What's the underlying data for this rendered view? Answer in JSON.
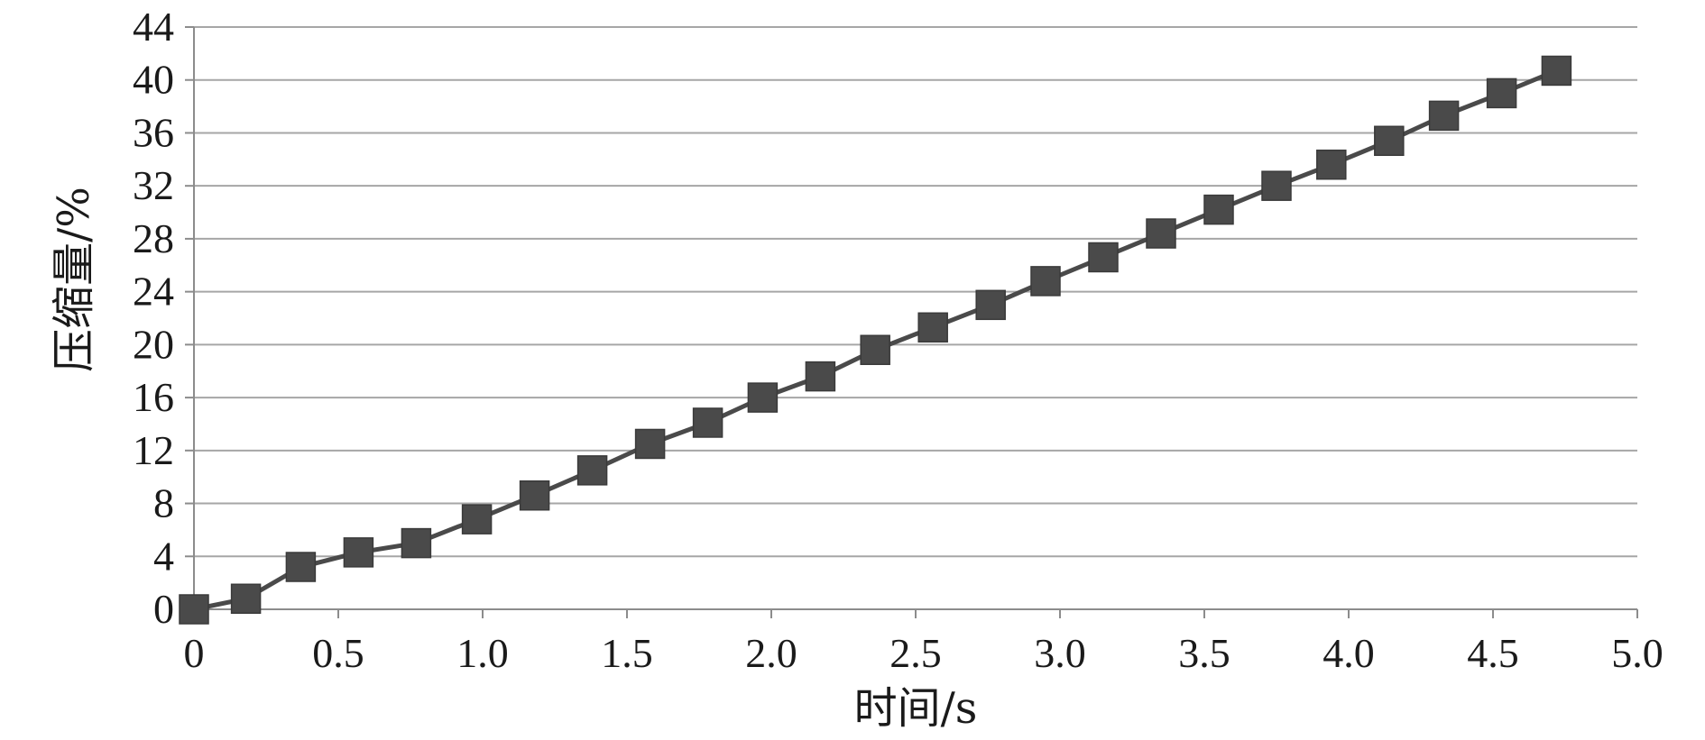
{
  "chart_data": {
    "type": "line",
    "title": "",
    "xlabel": "时间/s",
    "ylabel": "压缩量/%",
    "xlim": [
      0,
      5.0
    ],
    "ylim": [
      0,
      44
    ],
    "x_ticks": [
      "0",
      "0.5",
      "1.0",
      "1.5",
      "2.0",
      "2.5",
      "3.0",
      "3.5",
      "4.0",
      "4.5",
      "5.0"
    ],
    "y_ticks": [
      "0",
      "4",
      "8",
      "12",
      "16",
      "20",
      "24",
      "28",
      "32",
      "36",
      "40",
      "44"
    ],
    "grid": true,
    "legend": "none",
    "series": [
      {
        "marker": "square",
        "color": "#4a4a4a",
        "x": [
          0,
          0.18,
          0.37,
          0.57,
          0.77,
          0.98,
          1.18,
          1.38,
          1.58,
          1.78,
          1.97,
          2.17,
          2.36,
          2.56,
          2.76,
          2.95,
          3.15,
          3.35,
          3.55,
          3.75,
          3.94,
          4.14,
          4.33,
          4.53,
          4.72
        ],
        "y": [
          0,
          0.8,
          3.2,
          4.3,
          5.0,
          6.8,
          8.6,
          10.5,
          12.5,
          14.1,
          16.0,
          17.6,
          19.6,
          21.3,
          23.0,
          24.8,
          26.6,
          28.4,
          30.2,
          32.0,
          33.6,
          35.4,
          37.3,
          39.0,
          40.7
        ]
      }
    ],
    "colors": {
      "grid": "#a6a6a6",
      "axis": "#8c8c8c",
      "line": "#4a4a4a",
      "marker": "#4a4a4a"
    }
  }
}
